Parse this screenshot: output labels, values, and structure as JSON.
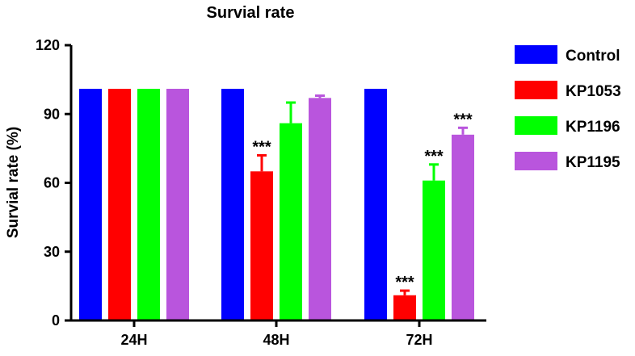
{
  "chart_data": {
    "type": "bar",
    "title": "Survial rate",
    "xlabel": "",
    "ylabel": "Survial rate (%)",
    "ylim": [
      0,
      120
    ],
    "yticks": [
      0,
      30,
      60,
      90,
      120
    ],
    "grid": false,
    "legend_position": "right",
    "categories": [
      "24H",
      "48H",
      "72H"
    ],
    "series": [
      {
        "name": "Control",
        "color": "#0000ff",
        "values": [
          101,
          101,
          101
        ],
        "errors": [
          0,
          0,
          0
        ],
        "significance": [
          "",
          "",
          ""
        ]
      },
      {
        "name": "KP1053",
        "color": "#ff0000",
        "values": [
          101,
          65,
          11
        ],
        "errors": [
          0,
          7,
          2
        ],
        "significance": [
          "",
          "***",
          "***"
        ]
      },
      {
        "name": "KP1196",
        "color": "#00ff00",
        "values": [
          101,
          86,
          61
        ],
        "errors": [
          0,
          9,
          7
        ],
        "significance": [
          "",
          "",
          "***"
        ]
      },
      {
        "name": "KP1195",
        "color": "#b955dd",
        "values": [
          101,
          97,
          81
        ],
        "errors": [
          0,
          1,
          3
        ],
        "significance": [
          "",
          "",
          "***"
        ]
      }
    ]
  }
}
